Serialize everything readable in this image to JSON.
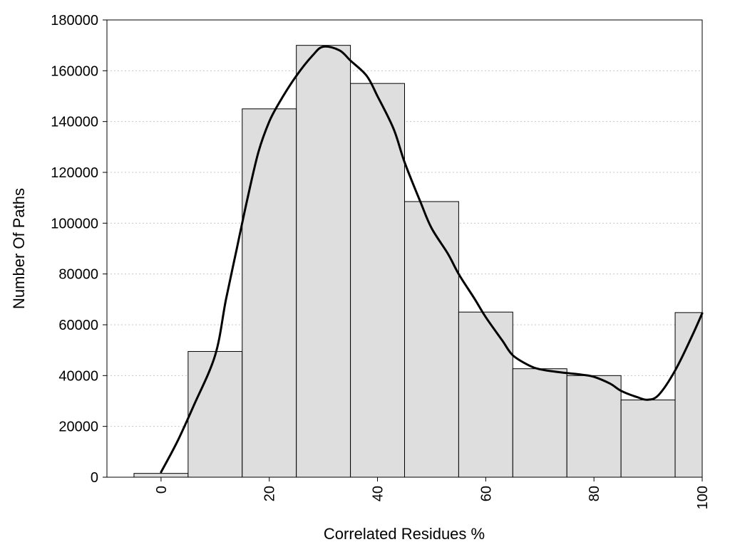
{
  "chart_data": {
    "type": "bar",
    "title": "",
    "xlabel": "Correlated Residues %",
    "ylabel": "Number Of Paths",
    "bins": [
      0,
      10,
      20,
      30,
      40,
      50,
      60,
      70,
      80,
      90,
      100
    ],
    "values": [
      1500,
      49500,
      145000,
      170000,
      155000,
      108500,
      65000,
      42700,
      40000,
      30400,
      64800
    ],
    "xlim": [
      -10,
      100
    ],
    "ylim": [
      0,
      180000
    ],
    "x_ticks": [
      "0",
      "20",
      "40",
      "60",
      "80",
      "100"
    ],
    "y_ticks": [
      "0",
      "20000",
      "40000",
      "60000",
      "80000",
      "100000",
      "120000",
      "140000",
      "160000",
      "180000"
    ],
    "bar_color": "#dedede",
    "curve": {
      "x": [
        0,
        3,
        6,
        10,
        12,
        14,
        16,
        18,
        20,
        22,
        25,
        28,
        30,
        33,
        35,
        38,
        40,
        43,
        45,
        48,
        50,
        53,
        55,
        58,
        60,
        63,
        65,
        68,
        70,
        73,
        75,
        78,
        80,
        83,
        85,
        88,
        90,
        92,
        95,
        98,
        100
      ],
      "y": [
        2000,
        14000,
        28000,
        48000,
        70000,
        90000,
        110000,
        128000,
        140000,
        148000,
        158000,
        166000,
        169500,
        168000,
        164000,
        158000,
        150000,
        137000,
        124000,
        108000,
        98000,
        88000,
        80000,
        70000,
        63000,
        54000,
        48000,
        44000,
        42500,
        41500,
        41000,
        40300,
        39500,
        36800,
        34000,
        31500,
        30500,
        32500,
        42000,
        55000,
        64500
      ]
    },
    "grid": "horizontal dotted"
  }
}
